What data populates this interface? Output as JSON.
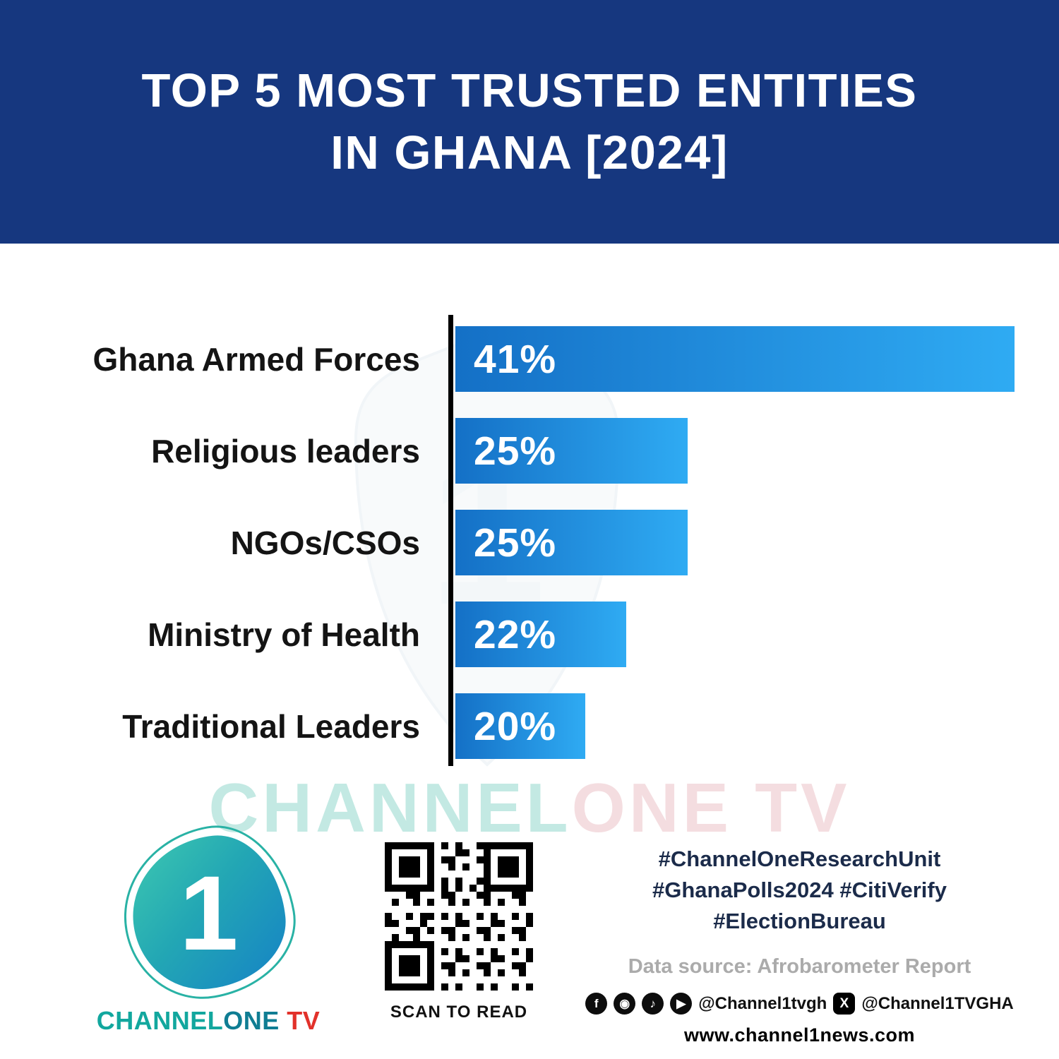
{
  "header": {
    "title_line1": "TOP 5 MOST TRUSTED ENTITIES",
    "title_line2": "IN GHANA [2024]"
  },
  "chart_data": {
    "type": "bar",
    "orientation": "horizontal",
    "title": "TOP 5 MOST TRUSTED ENTITIES IN GHANA [2024]",
    "categories": [
      "Ghana Armed Forces",
      "Religious leaders",
      "NGOs/CSOs",
      "Ministry of Health",
      "Traditional Leaders"
    ],
    "values": [
      41,
      25,
      25,
      22,
      20
    ],
    "value_labels": [
      "41%",
      "25%",
      "25%",
      "22%",
      "20%"
    ],
    "bar_display_widths_pct": [
      100,
      41.5,
      41.5,
      30.5,
      23.2
    ],
    "bar_color_start": "#1470c6",
    "bar_color_end": "#2fabf3",
    "xlabel": "",
    "ylabel": "",
    "grid": false,
    "legend": false
  },
  "watermark": {
    "channel": "CHANNEL",
    "onetv": "ONE TV"
  },
  "colors": {
    "header_bg": "#16377f",
    "brand_teal": "#12a79e",
    "brand_red": "#e2312a"
  },
  "footer": {
    "logo": {
      "one_glyph": "1",
      "brand_channel": "CHANNEL",
      "brand_one": "ONE",
      "brand_tv": " TV"
    },
    "qr_caption": "SCAN TO READ",
    "hashtags_line1": "#ChannelOneResearchUnit",
    "hashtags_line2": "#GhanaPolls2024 #CitiVerify",
    "hashtags_line3": "#ElectionBureau",
    "data_source": "Data source: Afrobarometer Report",
    "social": {
      "facebook_glyph": "f",
      "instagram_glyph": "◉",
      "tiktok_glyph": "♪",
      "youtube_glyph": "▶",
      "x_glyph": "X",
      "handle1": "@Channel1tvgh",
      "handle2": "@Channel1TVGHA"
    },
    "website": "www.channel1news.com"
  }
}
